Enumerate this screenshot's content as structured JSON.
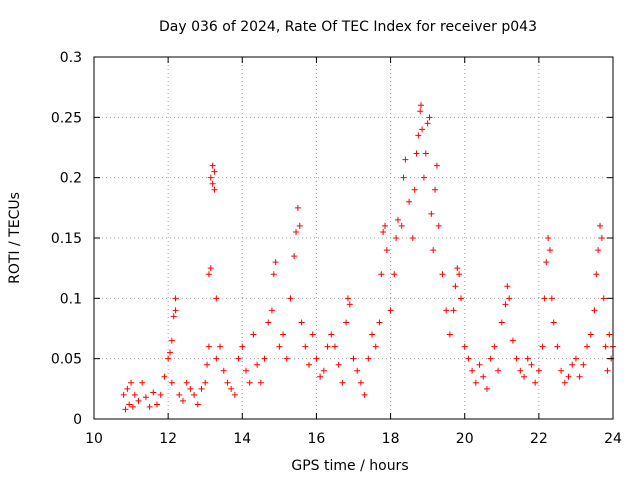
{
  "chart_data": {
    "type": "scatter",
    "title": "Day 036 of 2024, Rate Of TEC Index for receiver p043",
    "xlabel": "GPS time / hours",
    "ylabel": "ROTI / TECUs",
    "xlim": [
      10,
      24
    ],
    "ylim": [
      0,
      0.3
    ],
    "x_ticks": [
      10,
      12,
      14,
      16,
      18,
      20,
      22,
      24
    ],
    "y_ticks": [
      0,
      0.05,
      0.1,
      0.15,
      0.2,
      0.25,
      0.3
    ],
    "x_tick_labels": [
      "10",
      "12",
      "14",
      "16",
      "18",
      "20",
      "22",
      "24"
    ],
    "y_tick_labels": [
      "0",
      "0.05",
      "0.1",
      "0.15",
      "0.2",
      "0.25",
      "0.3"
    ],
    "grid": true,
    "marker": "+",
    "marker_color": "#ff0000",
    "series": [
      {
        "name": "p043",
        "points": [
          [
            10.8,
            0.02
          ],
          [
            10.85,
            0.008
          ],
          [
            10.9,
            0.025
          ],
          [
            10.95,
            0.012
          ],
          [
            11.0,
            0.03
          ],
          [
            11.05,
            0.01
          ],
          [
            11.1,
            0.02
          ],
          [
            11.2,
            0.015
          ],
          [
            11.3,
            0.03
          ],
          [
            11.4,
            0.018
          ],
          [
            11.5,
            0.01
          ],
          [
            11.6,
            0.022
          ],
          [
            11.7,
            0.012
          ],
          [
            11.8,
            0.02
          ],
          [
            11.9,
            0.035
          ],
          [
            12.0,
            0.05
          ],
          [
            12.05,
            0.055
          ],
          [
            12.1,
            0.03
          ],
          [
            12.1,
            0.065
          ],
          [
            12.15,
            0.085
          ],
          [
            12.2,
            0.1
          ],
          [
            12.2,
            0.09
          ],
          [
            12.3,
            0.02
          ],
          [
            12.4,
            0.015
          ],
          [
            12.5,
            0.03
          ],
          [
            12.6,
            0.025
          ],
          [
            12.7,
            0.02
          ],
          [
            12.8,
            0.012
          ],
          [
            12.9,
            0.025
          ],
          [
            13.0,
            0.03
          ],
          [
            13.05,
            0.045
          ],
          [
            13.1,
            0.06
          ],
          [
            13.1,
            0.12
          ],
          [
            13.15,
            0.125
          ],
          [
            13.15,
            0.2
          ],
          [
            13.2,
            0.195
          ],
          [
            13.2,
            0.21
          ],
          [
            13.25,
            0.205
          ],
          [
            13.25,
            0.19
          ],
          [
            13.3,
            0.1
          ],
          [
            13.3,
            0.05
          ],
          [
            13.4,
            0.06
          ],
          [
            13.5,
            0.04
          ],
          [
            13.6,
            0.03
          ],
          [
            13.7,
            0.025
          ],
          [
            13.8,
            0.02
          ],
          [
            13.9,
            0.05
          ],
          [
            14.0,
            0.06
          ],
          [
            14.1,
            0.04
          ],
          [
            14.2,
            0.03
          ],
          [
            14.3,
            0.07
          ],
          [
            14.4,
            0.045
          ],
          [
            14.5,
            0.03
          ],
          [
            14.6,
            0.05
          ],
          [
            14.7,
            0.08
          ],
          [
            14.8,
            0.09
          ],
          [
            14.85,
            0.12
          ],
          [
            14.9,
            0.13
          ],
          [
            15.0,
            0.06
          ],
          [
            15.1,
            0.07
          ],
          [
            15.2,
            0.05
          ],
          [
            15.3,
            0.1
          ],
          [
            15.4,
            0.135
          ],
          [
            15.45,
            0.155
          ],
          [
            15.5,
            0.175
          ],
          [
            15.55,
            0.16
          ],
          [
            15.6,
            0.08
          ],
          [
            15.7,
            0.06
          ],
          [
            15.8,
            0.045
          ],
          [
            15.9,
            0.07
          ],
          [
            16.0,
            0.05
          ],
          [
            16.1,
            0.035
          ],
          [
            16.2,
            0.04
          ],
          [
            16.3,
            0.06
          ],
          [
            16.4,
            0.07
          ],
          [
            16.5,
            0.06
          ],
          [
            16.6,
            0.045
          ],
          [
            16.7,
            0.03
          ],
          [
            16.8,
            0.08
          ],
          [
            16.85,
            0.1
          ],
          [
            16.9,
            0.095
          ],
          [
            17.0,
            0.05
          ],
          [
            17.1,
            0.04
          ],
          [
            17.2,
            0.03
          ],
          [
            17.3,
            0.02
          ],
          [
            17.4,
            0.05
          ],
          [
            17.5,
            0.07
          ],
          [
            17.6,
            0.06
          ],
          [
            17.7,
            0.08
          ],
          [
            17.75,
            0.12
          ],
          [
            17.8,
            0.155
          ],
          [
            17.85,
            0.16
          ],
          [
            17.9,
            0.14
          ],
          [
            18.0,
            0.09
          ],
          [
            18.1,
            0.12
          ],
          [
            18.15,
            0.15
          ],
          [
            18.2,
            0.165
          ],
          [
            18.3,
            0.16
          ],
          [
            18.35,
            0.2
          ],
          [
            18.4,
            0.215
          ],
          [
            18.5,
            0.18
          ],
          [
            18.6,
            0.15
          ],
          [
            18.65,
            0.19
          ],
          [
            18.7,
            0.22
          ],
          [
            18.75,
            0.235
          ],
          [
            18.8,
            0.255
          ],
          [
            18.82,
            0.26
          ],
          [
            18.85,
            0.24
          ],
          [
            18.9,
            0.2
          ],
          [
            18.95,
            0.22
          ],
          [
            19.0,
            0.245
          ],
          [
            19.05,
            0.25
          ],
          [
            19.1,
            0.17
          ],
          [
            19.15,
            0.14
          ],
          [
            19.2,
            0.19
          ],
          [
            19.25,
            0.21
          ],
          [
            19.3,
            0.16
          ],
          [
            19.4,
            0.12
          ],
          [
            19.5,
            0.09
          ],
          [
            19.6,
            0.07
          ],
          [
            19.7,
            0.09
          ],
          [
            19.75,
            0.11
          ],
          [
            19.8,
            0.125
          ],
          [
            19.85,
            0.12
          ],
          [
            19.9,
            0.1
          ],
          [
            20.0,
            0.06
          ],
          [
            20.1,
            0.05
          ],
          [
            20.2,
            0.04
          ],
          [
            20.3,
            0.03
          ],
          [
            20.4,
            0.045
          ],
          [
            20.5,
            0.035
          ],
          [
            20.6,
            0.025
          ],
          [
            20.7,
            0.05
          ],
          [
            20.8,
            0.06
          ],
          [
            20.9,
            0.04
          ],
          [
            21.0,
            0.08
          ],
          [
            21.1,
            0.095
          ],
          [
            21.15,
            0.11
          ],
          [
            21.2,
            0.1
          ],
          [
            21.3,
            0.065
          ],
          [
            21.4,
            0.05
          ],
          [
            21.5,
            0.04
          ],
          [
            21.6,
            0.035
          ],
          [
            21.7,
            0.05
          ],
          [
            21.8,
            0.045
          ],
          [
            21.9,
            0.03
          ],
          [
            22.0,
            0.04
          ],
          [
            22.1,
            0.06
          ],
          [
            22.15,
            0.1
          ],
          [
            22.2,
            0.13
          ],
          [
            22.25,
            0.15
          ],
          [
            22.3,
            0.14
          ],
          [
            22.35,
            0.1
          ],
          [
            22.4,
            0.08
          ],
          [
            22.5,
            0.06
          ],
          [
            22.6,
            0.04
          ],
          [
            22.7,
            0.03
          ],
          [
            22.8,
            0.035
          ],
          [
            22.9,
            0.045
          ],
          [
            23.0,
            0.05
          ],
          [
            23.1,
            0.035
          ],
          [
            23.2,
            0.045
          ],
          [
            23.3,
            0.06
          ],
          [
            23.4,
            0.07
          ],
          [
            23.5,
            0.09
          ],
          [
            23.55,
            0.12
          ],
          [
            23.6,
            0.14
          ],
          [
            23.65,
            0.16
          ],
          [
            23.7,
            0.15
          ],
          [
            23.75,
            0.1
          ],
          [
            23.8,
            0.06
          ],
          [
            23.85,
            0.04
          ],
          [
            23.9,
            0.07
          ],
          [
            23.95,
            0.05
          ],
          [
            24.0,
            0.06
          ]
        ]
      }
    ]
  }
}
